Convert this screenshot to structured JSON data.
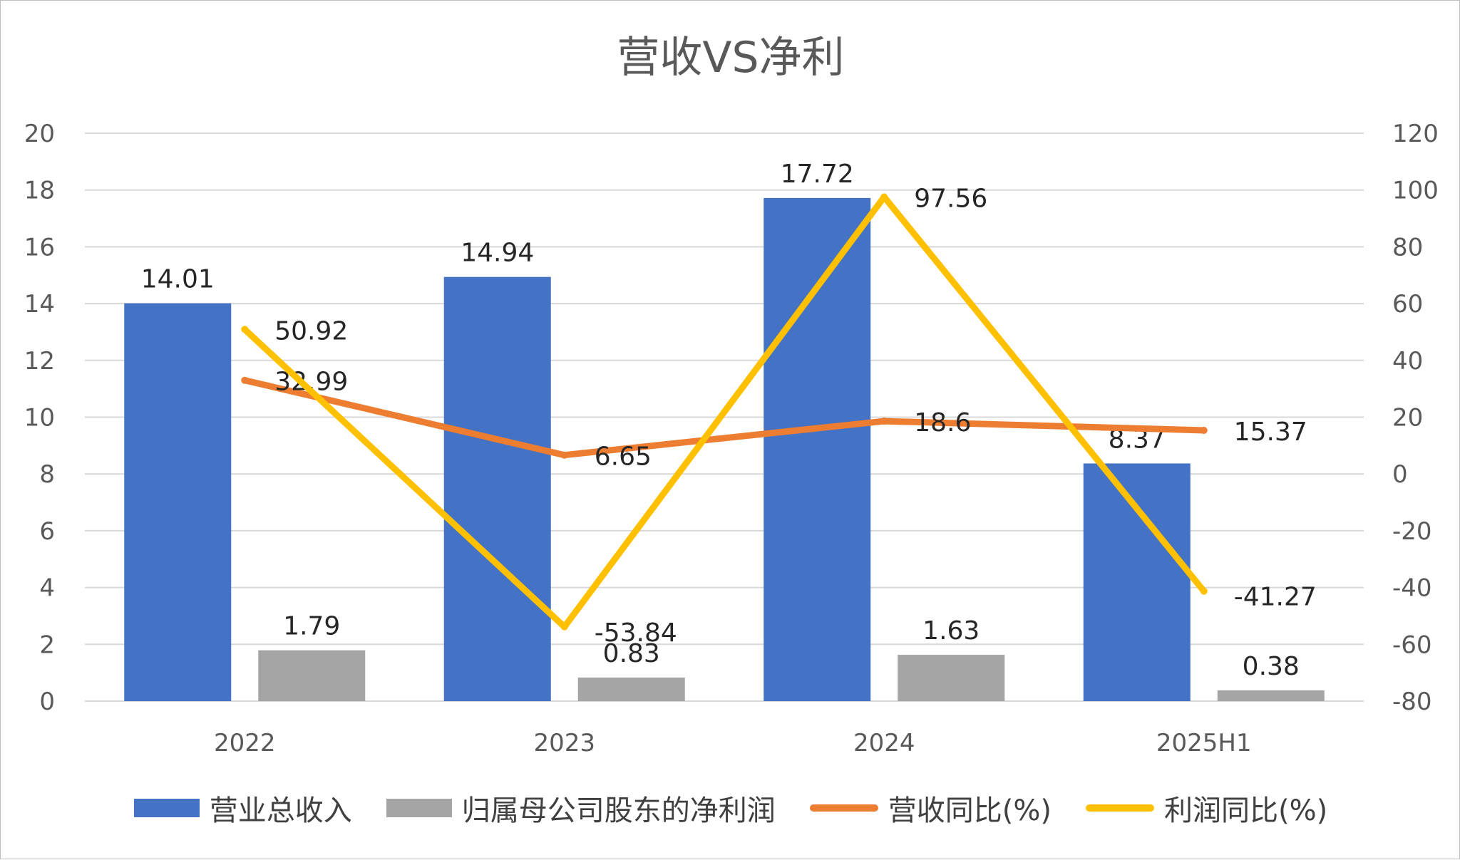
{
  "chart_data": {
    "type": "bar+line",
    "title": "营收VS净利",
    "categories": [
      "2022",
      "2023",
      "2024",
      "2025H1"
    ],
    "y_left": {
      "ylim": [
        0,
        20
      ],
      "ticks": [
        "0",
        "2",
        "4",
        "6",
        "8",
        "10",
        "12",
        "14",
        "16",
        "18",
        "20"
      ]
    },
    "y_right": {
      "ylim": [
        -80,
        120
      ],
      "ticks": [
        "-80",
        "-60",
        "-40",
        "-20",
        "0",
        "20",
        "40",
        "60",
        "80",
        "100",
        "120"
      ]
    },
    "grid": true,
    "legend_position": "bottom",
    "series": [
      {
        "name": "营业总收入",
        "kind": "bar",
        "axis": "left",
        "color": "#4472C4",
        "values": [
          14.01,
          14.94,
          17.72,
          8.37
        ],
        "labels": [
          "14.01",
          "14.94",
          "17.72",
          "8.37"
        ]
      },
      {
        "name": "归属母公司股东的净利润",
        "kind": "bar",
        "axis": "left",
        "color": "#A5A5A5",
        "values": [
          1.79,
          0.83,
          1.63,
          0.38
        ],
        "labels": [
          "1.79",
          "0.83",
          "1.63",
          "0.38"
        ]
      },
      {
        "name": "营收同比(%)",
        "kind": "line",
        "axis": "right",
        "color": "#ED7D31",
        "values": [
          32.99,
          6.65,
          18.6,
          15.37
        ],
        "labels": [
          "32.99",
          "6.65",
          "18.6",
          "15.37"
        ]
      },
      {
        "name": "利润同比(%)",
        "kind": "line",
        "axis": "right",
        "color": "#FFC000",
        "values": [
          50.92,
          -53.84,
          97.56,
          -41.27
        ],
        "labels": [
          "50.92",
          "-53.84",
          "97.56",
          "-41.27"
        ]
      }
    ]
  }
}
